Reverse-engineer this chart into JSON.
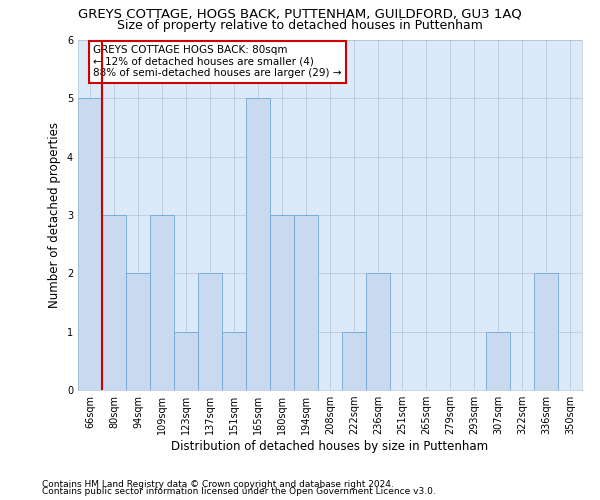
{
  "title": "GREYS COTTAGE, HOGS BACK, PUTTENHAM, GUILDFORD, GU3 1AQ",
  "subtitle": "Size of property relative to detached houses in Puttenham",
  "xlabel": "Distribution of detached houses by size in Puttenham",
  "ylabel": "Number of detached properties",
  "categories": [
    "66sqm",
    "80sqm",
    "94sqm",
    "109sqm",
    "123sqm",
    "137sqm",
    "151sqm",
    "165sqm",
    "180sqm",
    "194sqm",
    "208sqm",
    "222sqm",
    "236sqm",
    "251sqm",
    "265sqm",
    "279sqm",
    "293sqm",
    "307sqm",
    "322sqm",
    "336sqm",
    "350sqm"
  ],
  "values": [
    5,
    3,
    2,
    3,
    1,
    2,
    1,
    5,
    3,
    3,
    0,
    1,
    2,
    0,
    0,
    0,
    0,
    1,
    0,
    2,
    0
  ],
  "bar_color": "#c9d9ef",
  "bar_edge_color": "#6fa8d6",
  "vline_index": 1,
  "vline_color": "#cc0000",
  "ylim": [
    0,
    6
  ],
  "yticks": [
    0,
    1,
    2,
    3,
    4,
    5,
    6
  ],
  "annotation_title": "GREYS COTTAGE HOGS BACK: 80sqm",
  "annotation_line1": "← 12% of detached houses are smaller (4)",
  "annotation_line2": "88% of semi-detached houses are larger (29) →",
  "annotation_box_facecolor": "#ffffff",
  "annotation_box_edgecolor": "#cc0000",
  "footer1": "Contains HM Land Registry data © Crown copyright and database right 2024.",
  "footer2": "Contains public sector information licensed under the Open Government Licence v3.0.",
  "bg_color": "#ffffff",
  "plot_bg_color": "#dce9f8",
  "grid_color": "#b0c4d8",
  "title_fontsize": 9.5,
  "subtitle_fontsize": 9,
  "axis_label_fontsize": 8.5,
  "tick_fontsize": 7,
  "annotation_fontsize": 7.5,
  "footer_fontsize": 6.5
}
